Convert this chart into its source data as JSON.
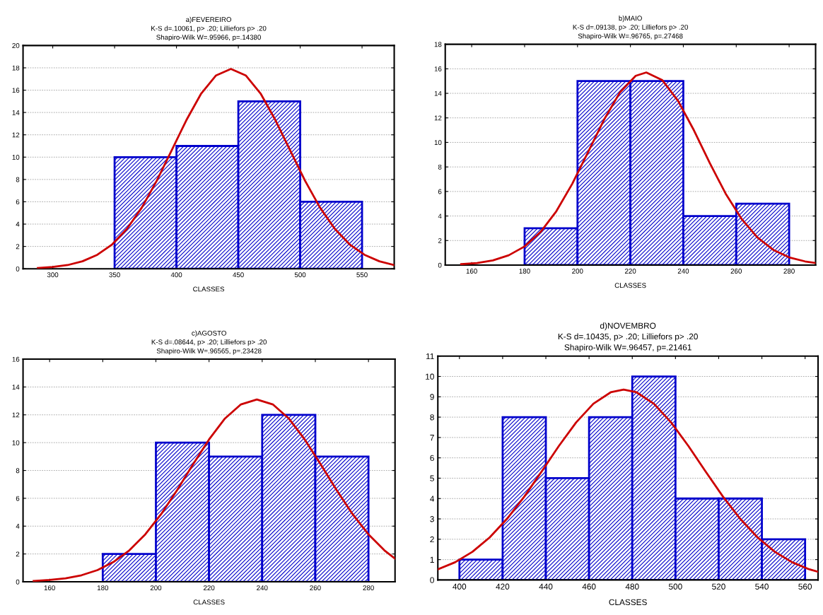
{
  "chart_data": [
    {
      "type": "histogram",
      "title": "a)FEVEREIRO",
      "subtitle": "K-S d=.10061, p> .20; Lilliefors p> .20\nShapiro-Wilk W=.95966, p=.14380",
      "xlabel": "CLASSES",
      "bins": [
        350,
        400,
        450,
        500,
        550
      ],
      "values": [
        10,
        11,
        15,
        6
      ],
      "color": "#0000cc",
      "series": [
        {
          "type": "line",
          "color": "#cc0000",
          "x": [
            288,
            300,
            312,
            324,
            336,
            348,
            360,
            372,
            384,
            396,
            408,
            420,
            432,
            444,
            456,
            468,
            480,
            492,
            504,
            516,
            528,
            540,
            552,
            564,
            576
          ],
          "values": [
            0.07,
            0.16,
            0.33,
            0.67,
            1.25,
            2.18,
            3.57,
            5.48,
            7.87,
            10.58,
            13.31,
            15.7,
            17.32,
            17.9,
            17.32,
            15.7,
            13.31,
            10.58,
            7.87,
            5.48,
            3.57,
            2.18,
            1.25,
            0.67,
            0.33
          ]
        }
      ],
      "xlim": [
        276,
        576
      ],
      "xticks": [
        300,
        350,
        400,
        450,
        500,
        550
      ],
      "ylim": [
        0,
        20
      ],
      "yticks": [
        0,
        2,
        4,
        6,
        8,
        10,
        12,
        14,
        16,
        18,
        20
      ],
      "grid": "y",
      "legend": false
    },
    {
      "type": "histogram",
      "title": "b)MAIO",
      "subtitle": "K-S d=.09138, p> .20; Lilliefors p> .20\nShapiro-Wilk W=.96765, p=.27468",
      "xlabel": "CLASSES",
      "bins": [
        180,
        200,
        220,
        240,
        260,
        280
      ],
      "values": [
        3,
        15,
        15,
        4,
        5
      ],
      "color": "#0000cc",
      "series": [
        {
          "type": "line",
          "color": "#cc0000",
          "x": [
            156,
            162,
            168,
            174,
            180,
            186,
            192,
            198,
            204,
            210,
            216,
            222,
            226,
            232,
            238,
            244,
            250,
            256,
            262,
            268,
            274,
            280,
            286,
            290
          ],
          "values": [
            0.07,
            0.17,
            0.38,
            0.8,
            1.52,
            2.69,
            4.39,
            6.62,
            9.21,
            11.84,
            14.07,
            15.43,
            15.7,
            15.09,
            13.39,
            10.99,
            8.32,
            5.82,
            3.77,
            2.25,
            1.24,
            0.63,
            0.3,
            0.17
          ]
        }
      ],
      "xlim": [
        150,
        290
      ],
      "xticks": [
        160,
        180,
        200,
        220,
        240,
        260,
        280
      ],
      "ylim": [
        0,
        18
      ],
      "yticks": [
        0,
        2,
        4,
        6,
        8,
        10,
        12,
        14,
        16,
        18
      ],
      "grid": "y",
      "legend": false
    },
    {
      "type": "histogram",
      "title": "c)AGOSTO",
      "subtitle": "K-S d=.08644, p> .20; Lilliefors p> .20\nShapiro-Wilk W=.96565, p=.23428",
      "xlabel": "CLASSES",
      "bins": [
        180,
        200,
        220,
        240,
        260,
        280
      ],
      "values": [
        2,
        10,
        9,
        12,
        9
      ],
      "color": "#0000cc",
      "series": [
        {
          "type": "line",
          "color": "#cc0000",
          "x": [
            154,
            160,
            166,
            172,
            178,
            184,
            190,
            196,
            202,
            208,
            214,
            220,
            226,
            232,
            238,
            244,
            250,
            256,
            262,
            268,
            274,
            280,
            286,
            290
          ],
          "values": [
            0.06,
            0.13,
            0.25,
            0.47,
            0.84,
            1.42,
            2.26,
            3.41,
            4.87,
            6.59,
            8.45,
            10.23,
            11.74,
            12.75,
            13.1,
            12.75,
            11.74,
            10.23,
            8.45,
            6.59,
            4.87,
            3.41,
            2.26,
            1.66
          ]
        }
      ],
      "xlim": [
        150,
        290
      ],
      "xticks": [
        160,
        180,
        200,
        220,
        240,
        260,
        280
      ],
      "ylim": [
        0,
        16
      ],
      "yticks": [
        0,
        2,
        4,
        6,
        8,
        10,
        12,
        14,
        16
      ],
      "grid": "y",
      "legend": false
    },
    {
      "type": "histogram",
      "title": "d)NOVEMBRO",
      "subtitle": "K-S d=.10435, p> .20; Lilliefors p> .20\nShapiro-Wilk W=.96457, p=.21461",
      "xlabel": "CLASSES",
      "bins": [
        400,
        420,
        440,
        460,
        480,
        500,
        520,
        540,
        560
      ],
      "values": [
        1,
        8,
        5,
        8,
        10,
        4,
        4,
        2
      ],
      "color": "#0000cc",
      "series": [
        {
          "type": "line",
          "color": "#cc0000",
          "x": [
            390,
            398,
            406,
            414,
            422,
            430,
            438,
            446,
            454,
            462,
            470,
            476,
            482,
            490,
            498,
            506,
            514,
            522,
            530,
            538,
            546,
            554,
            562,
            566
          ],
          "values": [
            0.52,
            0.87,
            1.38,
            2.09,
            3.0,
            4.09,
            5.32,
            6.58,
            7.74,
            8.66,
            9.22,
            9.35,
            9.22,
            8.66,
            7.74,
            6.58,
            5.32,
            4.09,
            3.0,
            2.09,
            1.38,
            0.87,
            0.52,
            0.4
          ]
        }
      ],
      "xlim": [
        390,
        566
      ],
      "xticks": [
        400,
        420,
        440,
        460,
        480,
        500,
        520,
        540,
        560
      ],
      "ylim": [
        0,
        11
      ],
      "yticks": [
        0,
        1,
        2,
        3,
        4,
        5,
        6,
        7,
        8,
        9,
        10,
        11
      ],
      "grid": "y",
      "legend": false
    }
  ]
}
